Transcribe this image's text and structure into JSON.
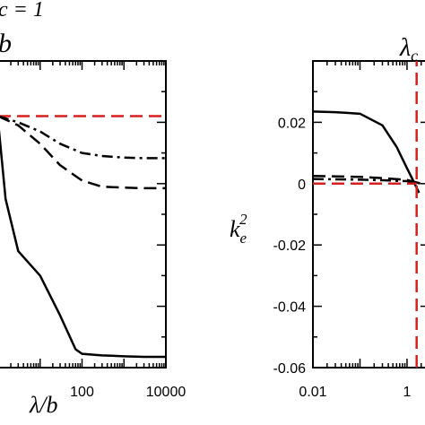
{
  "figure": {
    "top_left_fragment": "c = 1",
    "top_left_symbol": "b",
    "top_right_label": "λ",
    "top_right_label_sub": "c"
  },
  "chart_data": [
    {
      "type": "line",
      "panel": "left",
      "xscale": "log",
      "xlim": [
        1,
        10000
      ],
      "ylim": [
        0,
        1
      ],
      "xlabel": "λ/b",
      "ylabel": "",
      "xticks": [
        100,
        10000
      ],
      "xticklabels": [
        "100",
        "10000"
      ],
      "series": [
        {
          "style": "dashed",
          "color": "#d62020",
          "x": [
            1,
            10000
          ],
          "y": [
            0.82,
            0.82
          ]
        },
        {
          "style": "dashdot",
          "color": "#000000",
          "x": [
            1,
            3,
            10,
            30,
            100,
            300,
            1000,
            3000,
            10000
          ],
          "y": [
            0.82,
            0.8,
            0.77,
            0.73,
            0.7,
            0.69,
            0.685,
            0.683,
            0.683
          ]
        },
        {
          "style": "dashed",
          "color": "#000000",
          "x": [
            1,
            3,
            10,
            30,
            100,
            300,
            1000,
            3000,
            10000
          ],
          "y": [
            0.82,
            0.79,
            0.73,
            0.66,
            0.61,
            0.59,
            0.587,
            0.585,
            0.585
          ]
        },
        {
          "style": "solid",
          "color": "#000000",
          "x": [
            1,
            1.5,
            3,
            10,
            30,
            70,
            100,
            300,
            1000,
            3000,
            10000
          ],
          "y": [
            0.8,
            0.55,
            0.38,
            0.3,
            0.17,
            0.06,
            0.045,
            0.04,
            0.037,
            0.035,
            0.035
          ]
        }
      ]
    },
    {
      "type": "line",
      "panel": "right",
      "xscale": "log",
      "xlim": [
        0.01,
        3
      ],
      "ylim": [
        -0.06,
        0.04
      ],
      "xlabel": "",
      "ylabel": "k_e^2",
      "ylabel_base": "k",
      "ylabel_sub": "e",
      "ylabel_sup": "2",
      "xticks": [
        0.01,
        1
      ],
      "xticklabels": [
        "0.01",
        "1"
      ],
      "yticks": [
        0.02,
        0,
        -0.02,
        -0.04,
        -0.06
      ],
      "yticklabels": [
        "0.02",
        "0",
        "-0.02",
        "-0.04",
        "-0.06"
      ],
      "series": [
        {
          "style": "solid",
          "color": "#000000",
          "x": [
            0.01,
            0.03,
            0.1,
            0.3,
            0.6,
            1.0,
            1.4,
            1.8
          ],
          "y": [
            0.0235,
            0.0233,
            0.0228,
            0.019,
            0.012,
            0.005,
            0.0005,
            -0.003
          ]
        },
        {
          "style": "dashed",
          "color": "#000000",
          "x": [
            0.01,
            0.1,
            0.3,
            1.0,
            1.5,
            2.0
          ],
          "y": [
            0.0025,
            0.0022,
            0.0018,
            0.0012,
            0.0005,
            0.0
          ]
        },
        {
          "style": "dashdot",
          "color": "#000000",
          "x": [
            0.01,
            0.1,
            0.3,
            1.0,
            1.5,
            2.0
          ],
          "y": [
            0.0015,
            0.0013,
            0.0011,
            0.0008,
            0.0004,
            0.0
          ]
        },
        {
          "style": "dashed",
          "color": "#d62020",
          "x": [
            0.01,
            1.6
          ],
          "y": [
            0.0,
            0.0
          ]
        },
        {
          "style": "dashed",
          "color": "#d62020",
          "x": [
            1.6,
            1.6
          ],
          "y": [
            -0.06,
            0.04
          ]
        }
      ]
    }
  ]
}
